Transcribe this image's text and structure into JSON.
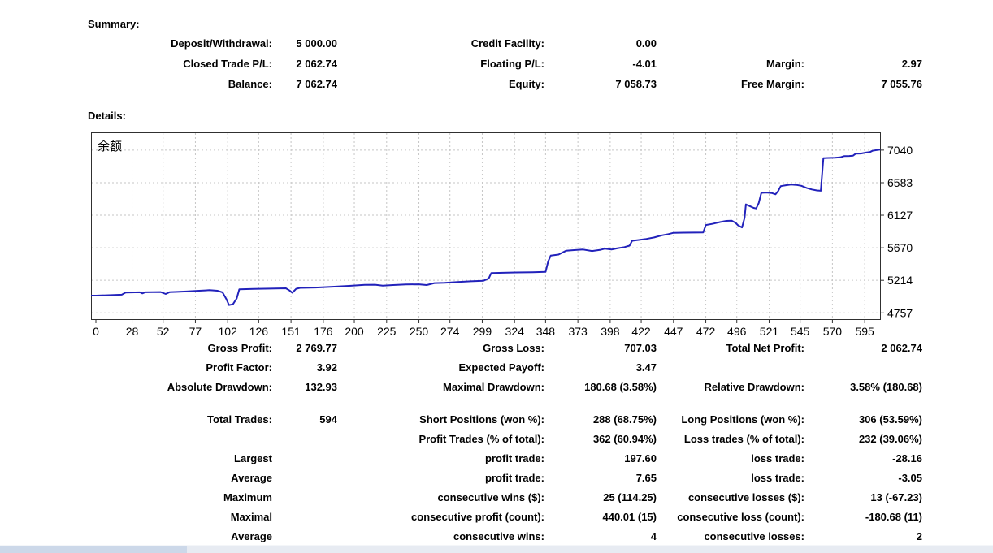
{
  "report": {
    "summary": {
      "title": "Summary:",
      "rows": [
        {
          "l1": "Deposit/Withdrawal:",
          "v1": "5 000.00",
          "l2": "Credit Facility:",
          "v2": "0.00",
          "l3": "",
          "v3": ""
        },
        {
          "l1": "Closed Trade P/L:",
          "v1": "2 062.74",
          "l2": "Floating P/L:",
          "v2": "-4.01",
          "l3": "Margin:",
          "v3": "2.97"
        },
        {
          "l1": "Balance:",
          "v1": "7 062.74",
          "l2": "Equity:",
          "v2": "7 058.73",
          "l3": "Free Margin:",
          "v3": "7 055.76"
        }
      ]
    },
    "details_title": "Details:",
    "stats": {
      "rows": [
        {
          "l1": "Gross Profit:",
          "v1": "2 769.77",
          "l2": "Gross Loss:",
          "v2": "707.03",
          "l3": "Total Net Profit:",
          "v3": "2 062.74"
        },
        {
          "l1": "Profit Factor:",
          "v1": "3.92",
          "l2": "Expected Payoff:",
          "v2": "3.47",
          "l3": "",
          "v3": ""
        },
        {
          "l1": "Absolute Drawdown:",
          "v1": "132.93",
          "l2": "Maximal Drawdown:",
          "v2": "180.68 (3.58%)",
          "l3": "Relative Drawdown:",
          "v3": "3.58% (180.68)"
        },
        {
          "l1": "Total Trades:",
          "v1": "594",
          "l2": "Short Positions (won %):",
          "v2": "288 (68.75%)",
          "l3": "Long Positions (won %):",
          "v3": "306 (53.59%)"
        },
        {
          "l1": "",
          "v1": "",
          "l2": "Profit Trades (% of total):",
          "v2": "362 (60.94%)",
          "l3": "Loss trades (% of total):",
          "v3": "232 (39.06%)"
        },
        {
          "l1": "Largest",
          "v1": "",
          "l2": "profit trade:",
          "v2": "197.60",
          "l3": "loss trade:",
          "v3": "-28.16"
        },
        {
          "l1": "Average",
          "v1": "",
          "l2": "profit trade:",
          "v2": "7.65",
          "l3": "loss trade:",
          "v3": "-3.05"
        },
        {
          "l1": "Maximum",
          "v1": "",
          "l2": "consecutive wins ($):",
          "v2": "25 (114.25)",
          "l3": "consecutive losses ($):",
          "v3": "13 (-67.23)"
        },
        {
          "l1": "Maximal",
          "v1": "",
          "l2": "consecutive profit (count):",
          "v2": "440.01 (15)",
          "l3": "consecutive loss (count):",
          "v3": "-180.68 (11)"
        },
        {
          "l1": "Average",
          "v1": "",
          "l2": "consecutive wins:",
          "v2": "4",
          "l3": "consecutive losses:",
          "v3": "2"
        }
      ]
    }
  },
  "chart_data": {
    "type": "line",
    "title": "余额",
    "xlabel": "",
    "ylabel": "",
    "legend": "none",
    "grid": "dashed",
    "line_color": "#2222bb",
    "grid_color": "#c6c6c6",
    "frame_color": "#303030",
    "x_ticks": [
      0,
      28,
      52,
      77,
      102,
      126,
      151,
      176,
      200,
      225,
      250,
      274,
      299,
      324,
      348,
      373,
      398,
      422,
      447,
      472,
      496,
      521,
      545,
      570,
      595
    ],
    "y_ticks": [
      4757,
      5214,
      5670,
      6127,
      6583,
      7040
    ],
    "xlim": [
      0,
      610
    ],
    "ylim": [
      4658,
      7289
    ],
    "series": [
      {
        "name": "余额",
        "points": [
          [
            0,
            5000
          ],
          [
            14,
            5008
          ],
          [
            20,
            5012
          ],
          [
            23,
            5042
          ],
          [
            34,
            5046
          ],
          [
            36,
            5030
          ],
          [
            38,
            5046
          ],
          [
            50,
            5050
          ],
          [
            54,
            5022
          ],
          [
            57,
            5048
          ],
          [
            63,
            5052
          ],
          [
            70,
            5058
          ],
          [
            80,
            5068
          ],
          [
            88,
            5076
          ],
          [
            94,
            5068
          ],
          [
            98,
            5045
          ],
          [
            101,
            4950
          ],
          [
            103,
            4868
          ],
          [
            106,
            4878
          ],
          [
            109,
            4960
          ],
          [
            111,
            5088
          ],
          [
            122,
            5094
          ],
          [
            135,
            5098
          ],
          [
            147,
            5102
          ],
          [
            150,
            5070
          ],
          [
            152,
            5040
          ],
          [
            155,
            5095
          ],
          [
            158,
            5108
          ],
          [
            170,
            5112
          ],
          [
            183,
            5124
          ],
          [
            196,
            5136
          ],
          [
            208,
            5150
          ],
          [
            216,
            5152
          ],
          [
            222,
            5140
          ],
          [
            230,
            5148
          ],
          [
            240,
            5156
          ],
          [
            250,
            5158
          ],
          [
            256,
            5148
          ],
          [
            262,
            5175
          ],
          [
            270,
            5180
          ],
          [
            280,
            5190
          ],
          [
            290,
            5200
          ],
          [
            300,
            5208
          ],
          [
            304,
            5240
          ],
          [
            306,
            5316
          ],
          [
            315,
            5320
          ],
          [
            325,
            5324
          ],
          [
            338,
            5328
          ],
          [
            348,
            5332
          ],
          [
            350,
            5480
          ],
          [
            352,
            5560
          ],
          [
            358,
            5575
          ],
          [
            364,
            5630
          ],
          [
            370,
            5638
          ],
          [
            377,
            5645
          ],
          [
            384,
            5625
          ],
          [
            390,
            5640
          ],
          [
            394,
            5658
          ],
          [
            399,
            5645
          ],
          [
            404,
            5665
          ],
          [
            409,
            5680
          ],
          [
            413,
            5700
          ],
          [
            415,
            5768
          ],
          [
            420,
            5780
          ],
          [
            426,
            5795
          ],
          [
            432,
            5815
          ],
          [
            438,
            5845
          ],
          [
            443,
            5862
          ],
          [
            447,
            5880
          ],
          [
            455,
            5882
          ],
          [
            463,
            5884
          ],
          [
            470,
            5886
          ],
          [
            472,
            5990
          ],
          [
            477,
            6005
          ],
          [
            483,
            6030
          ],
          [
            488,
            6048
          ],
          [
            492,
            6050
          ],
          [
            495,
            6020
          ],
          [
            497,
            5985
          ],
          [
            500,
            5955
          ],
          [
            502,
            6090
          ],
          [
            503,
            6280
          ],
          [
            506,
            6255
          ],
          [
            509,
            6230
          ],
          [
            511,
            6222
          ],
          [
            513,
            6300
          ],
          [
            515,
            6440
          ],
          [
            519,
            6445
          ],
          [
            523,
            6438
          ],
          [
            526,
            6420
          ],
          [
            528,
            6465
          ],
          [
            530,
            6535
          ],
          [
            534,
            6548
          ],
          [
            538,
            6558
          ],
          [
            542,
            6552
          ],
          [
            546,
            6540
          ],
          [
            550,
            6510
          ],
          [
            554,
            6488
          ],
          [
            558,
            6475
          ],
          [
            561,
            6470
          ],
          [
            562,
            6700
          ],
          [
            563,
            6928
          ],
          [
            567,
            6930
          ],
          [
            572,
            6932
          ],
          [
            576,
            6938
          ],
          [
            579,
            6955
          ],
          [
            583,
            6958
          ],
          [
            586,
            6962
          ],
          [
            588,
            6990
          ],
          [
            592,
            6992
          ],
          [
            596,
            7005
          ],
          [
            599,
            7012
          ],
          [
            601,
            7030
          ],
          [
            604,
            7040
          ],
          [
            607,
            7048
          ]
        ]
      }
    ]
  }
}
